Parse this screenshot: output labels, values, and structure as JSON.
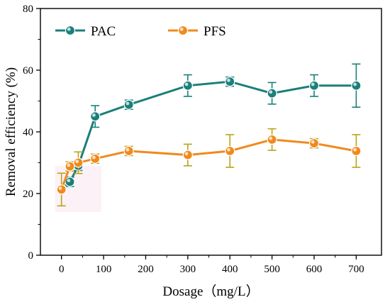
{
  "chart_data": {
    "type": "line",
    "title": "",
    "xlabel": "Dosage（mg/L）",
    "ylabel": "Removal efficiency (%)",
    "xlim": [
      -50,
      760
    ],
    "ylim": [
      0,
      80
    ],
    "xticks": [
      0,
      100,
      200,
      300,
      400,
      500,
      600,
      700
    ],
    "yticks": [
      0,
      20,
      40,
      60,
      80
    ],
    "grid": false,
    "legend": "top-left",
    "series": [
      {
        "name": "PAC",
        "color": "#1b7f7a",
        "x": [
          0,
          20,
          40,
          80,
          160,
          300,
          400,
          500,
          600,
          700
        ],
        "y": [
          21.5,
          23.8,
          29.0,
          45.0,
          48.8,
          55.0,
          56.3,
          52.5,
          55.0,
          55.0
        ],
        "err": [
          0.8,
          1.5,
          1.5,
          3.5,
          1.5,
          3.5,
          1.5,
          3.5,
          3.5,
          7.0
        ]
      },
      {
        "name": "PFS",
        "color": "#f08a1c",
        "errColor": "#b9a31b",
        "x": [
          0,
          20,
          40,
          80,
          160,
          300,
          400,
          500,
          600,
          700
        ],
        "y": [
          21.3,
          28.8,
          30.0,
          31.3,
          33.8,
          32.5,
          33.8,
          37.5,
          36.3,
          33.8
        ],
        "err": [
          5.3,
          1.5,
          3.5,
          1.5,
          1.5,
          3.5,
          5.3,
          3.5,
          1.5,
          5.3
        ]
      }
    ]
  }
}
